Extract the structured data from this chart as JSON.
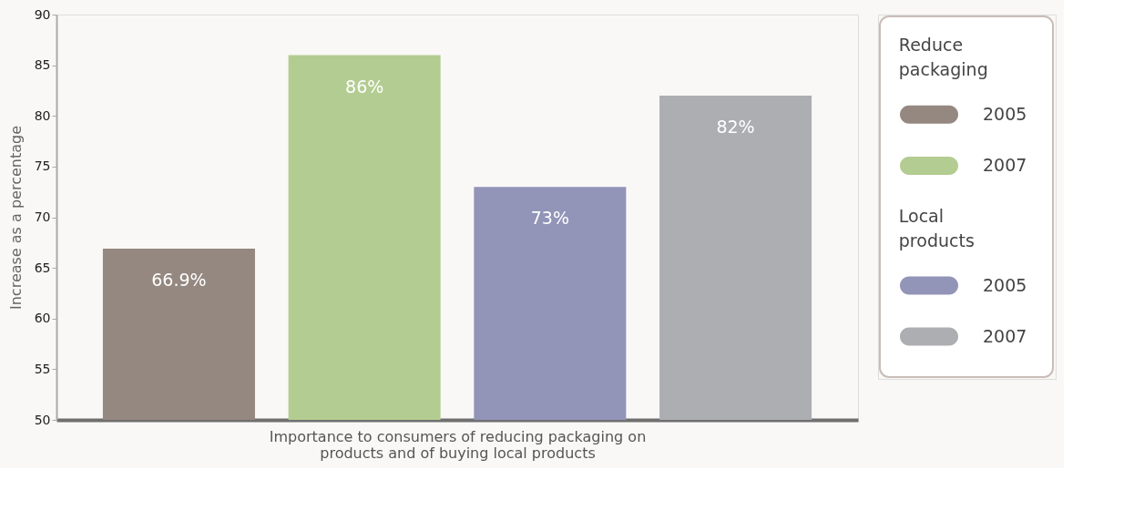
{
  "chart_data": {
    "type": "bar",
    "xlabel": "Importance to consumers of reducing packaging on\nproducts and of buying local products",
    "ylabel": "Increase as a percentage",
    "categories": [
      null,
      null,
      null,
      null
    ],
    "series": [
      {
        "name": "2005",
        "color": "#958880",
        "values": [
          66.9,
          null,
          null,
          null
        ],
        "value_labels": [
          "66.9%",
          null,
          null,
          null
        ]
      },
      {
        "name": "2007",
        "color": "#b3cc91",
        "values": [
          null,
          86,
          null,
          null
        ],
        "value_labels": [
          null,
          "86%",
          null,
          null
        ]
      },
      {
        "name": "2005",
        "color": "#9294b8",
        "values": [
          null,
          null,
          73,
          null
        ],
        "value_labels": [
          null,
          null,
          "73%",
          null
        ]
      },
      {
        "name": "2007",
        "color": "#adaeb2",
        "values": [
          null,
          null,
          null,
          82
        ],
        "value_labels": [
          null,
          null,
          null,
          "82%"
        ]
      }
    ],
    "annotations": [
      "Reduce packaging",
      "Local products"
    ],
    "ylim": [
      50,
      90
    ],
    "yticks": [
      50,
      55,
      60,
      65,
      70,
      75,
      80,
      85,
      90
    ],
    "grid": false,
    "legend": "right"
  }
}
